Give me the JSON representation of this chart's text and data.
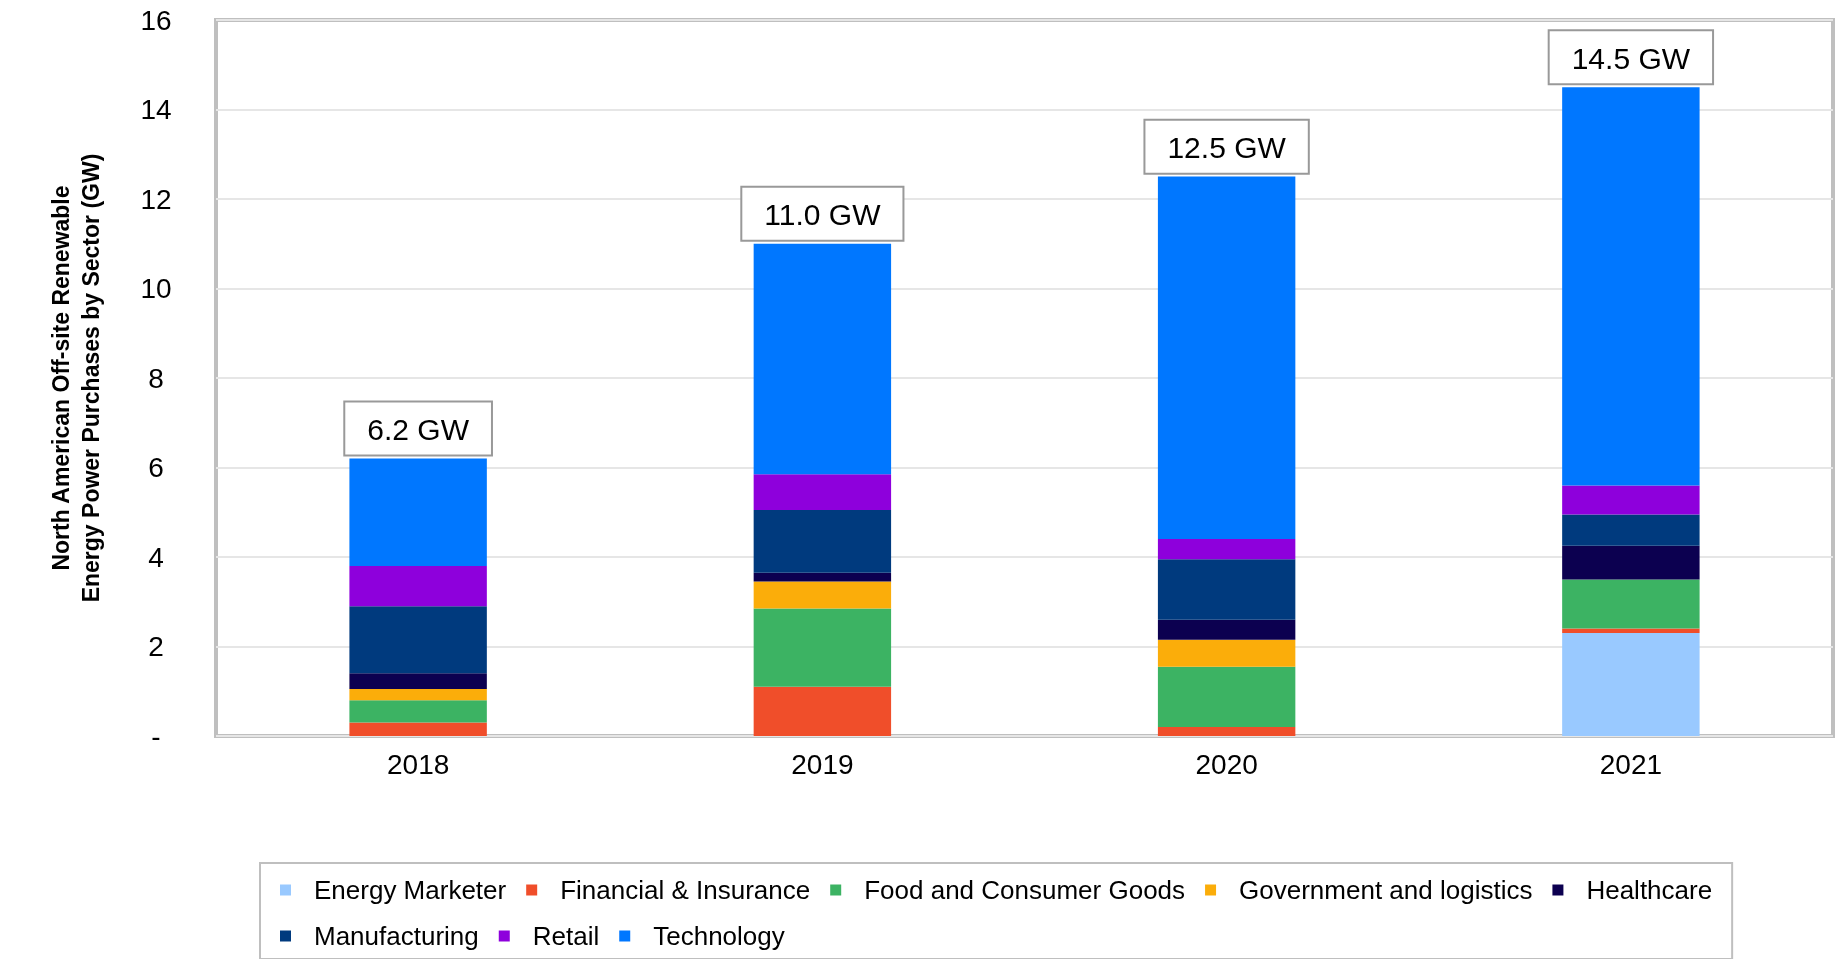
{
  "chart_data": {
    "type": "bar",
    "stacked": true,
    "ylabel": "North American Off-site Renewable Energy Power Purchases by Sector (GW)",
    "categories": [
      "2018",
      "2019",
      "2020",
      "2021"
    ],
    "series": [
      {
        "name": "Energy Marketer",
        "color": "#99c9ff",
        "values": [
          0,
          0,
          0,
          2.3
        ]
      },
      {
        "name": "Financial & Insurance",
        "color": "#f04e2a",
        "values": [
          0.3,
          1.1,
          0.2,
          0.1
        ]
      },
      {
        "name": "Food and Consumer Goods",
        "color": "#3cb363",
        "values": [
          0.5,
          1.75,
          1.35,
          1.1
        ]
      },
      {
        "name": "Government and logistics",
        "color": "#fbad0a",
        "values": [
          0.25,
          0.6,
          0.6,
          0
        ]
      },
      {
        "name": "Healthcare",
        "color": "#0c0050",
        "values": [
          0.35,
          0.2,
          0.45,
          0.75
        ]
      },
      {
        "name": "Manufacturing",
        "color": "#003a7e",
        "values": [
          1.5,
          1.4,
          1.35,
          0.7
        ]
      },
      {
        "name": "Retail",
        "color": "#8e00dc",
        "values": [
          0.9,
          0.8,
          0.45,
          0.65
        ]
      },
      {
        "name": "Technology",
        "color": "#0077ff",
        "values": [
          2.4,
          5.15,
          8.1,
          8.9
        ]
      }
    ],
    "totals": [
      "6.2 GW",
      "11.0 GW",
      "12.5 GW",
      "14.5 GW"
    ],
    "ylim": [
      0,
      16
    ],
    "yticks": [
      {
        "value": 0,
        "label": "-"
      },
      2,
      4,
      6,
      8,
      10,
      12,
      14,
      16
    ],
    "grid": "y",
    "legend": "bottom"
  }
}
